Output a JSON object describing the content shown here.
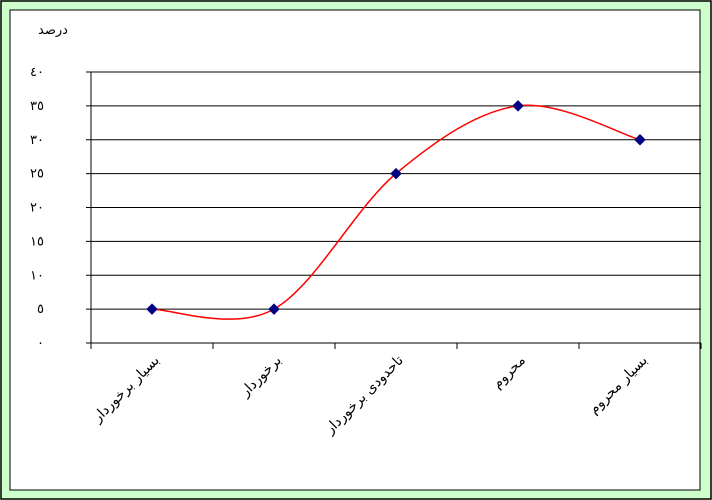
{
  "chart_data": {
    "type": "line",
    "title": "",
    "ylabel": "درصد",
    "xlabel": "",
    "categories": [
      "بسیار برخوردار",
      "برخوردار",
      "تاحدودی برخوردار",
      "محروم",
      "بسیار محروم"
    ],
    "series": [
      {
        "values": [
          5,
          5,
          25,
          35,
          30
        ]
      }
    ],
    "ylim": [
      0,
      40
    ],
    "yticks": [
      0,
      5,
      10,
      15,
      20,
      25,
      30,
      35,
      40
    ],
    "ytick_labels": [
      "٠",
      "٥",
      "١٠",
      "١٥",
      "٢٠",
      "٢٥",
      "٣٠",
      "٣٥",
      "٤٠"
    ],
    "grid": true,
    "smooth": true,
    "legend": "none",
    "colors": {
      "background": "#ccffcc",
      "plot_area": "#ffffff",
      "line": "#ff0000",
      "marker": "#000080",
      "grid": "#000000",
      "frame": "#000000"
    }
  }
}
